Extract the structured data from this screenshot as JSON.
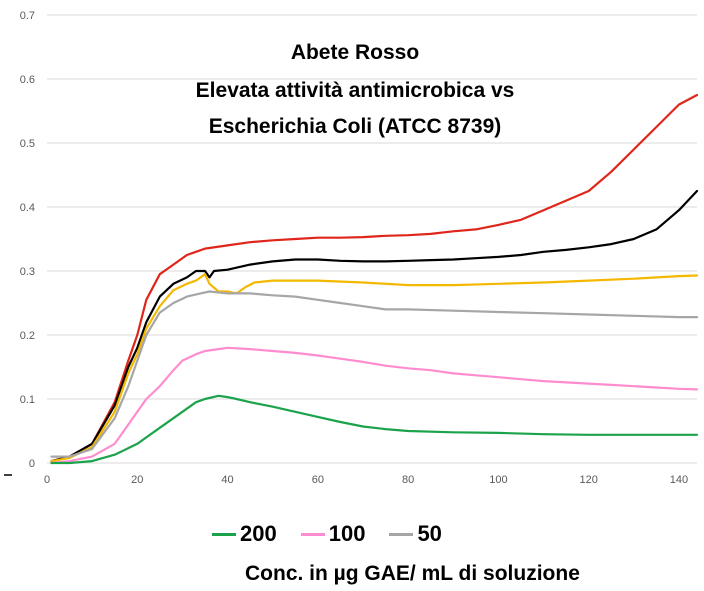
{
  "chart_data": {
    "type": "line",
    "title_lines": [
      "Abete Rosso",
      "Elevata attività antimicrobica vs",
      "Escherichia Coli (ATCC 8739)"
    ],
    "xlabel": "",
    "ylabel": "",
    "xlim": [
      0,
      144
    ],
    "ylim": [
      0,
      0.7
    ],
    "xticks": [
      "0",
      "20",
      "40",
      "60",
      "80",
      "100",
      "120",
      "140"
    ],
    "yticks": [
      "0",
      "0.1",
      "0.2",
      "0.3",
      "0.4",
      "0.5",
      "0.6",
      "0.7"
    ],
    "grid": "horizontal",
    "legend_position": "bottom",
    "legend_caption": "Conc. in µg GAE/ mL di soluzione",
    "series": [
      {
        "name": "",
        "color": "#e0261b",
        "x": [
          1,
          5,
          10,
          15,
          18,
          20,
          22,
          25,
          28,
          31,
          33,
          35,
          40,
          45,
          50,
          55,
          60,
          65,
          70,
          75,
          80,
          85,
          90,
          95,
          100,
          105,
          110,
          115,
          120,
          125,
          130,
          135,
          140,
          144
        ],
        "y": [
          0.003,
          0.01,
          0.03,
          0.095,
          0.16,
          0.2,
          0.255,
          0.295,
          0.31,
          0.325,
          0.33,
          0.335,
          0.34,
          0.345,
          0.348,
          0.35,
          0.352,
          0.352,
          0.353,
          0.355,
          0.356,
          0.358,
          0.362,
          0.365,
          0.372,
          0.38,
          0.395,
          0.41,
          0.425,
          0.455,
          0.49,
          0.525,
          0.56,
          0.575
        ]
      },
      {
        "name": "",
        "color": "#000000",
        "x": [
          1,
          5,
          10,
          15,
          18,
          20,
          22,
          25,
          28,
          31,
          33,
          35,
          36,
          37,
          40,
          45,
          50,
          55,
          60,
          65,
          70,
          75,
          80,
          85,
          90,
          95,
          100,
          105,
          110,
          115,
          120,
          125,
          130,
          135,
          140,
          144
        ],
        "y": [
          0.003,
          0.01,
          0.03,
          0.09,
          0.15,
          0.18,
          0.22,
          0.26,
          0.28,
          0.29,
          0.3,
          0.3,
          0.29,
          0.3,
          0.302,
          0.31,
          0.315,
          0.318,
          0.318,
          0.316,
          0.315,
          0.315,
          0.316,
          0.317,
          0.318,
          0.32,
          0.322,
          0.325,
          0.33,
          0.333,
          0.337,
          0.342,
          0.35,
          0.365,
          0.395,
          0.425
        ]
      },
      {
        "name": "",
        "color": "#f5b800",
        "x": [
          1,
          5,
          10,
          15,
          18,
          20,
          22,
          25,
          28,
          31,
          33,
          35,
          36,
          38,
          40,
          42,
          44,
          46,
          50,
          55,
          60,
          70,
          80,
          90,
          100,
          110,
          120,
          130,
          140,
          144
        ],
        "y": [
          0.003,
          0.008,
          0.025,
          0.08,
          0.14,
          0.17,
          0.21,
          0.245,
          0.27,
          0.28,
          0.285,
          0.295,
          0.28,
          0.268,
          0.268,
          0.265,
          0.275,
          0.282,
          0.285,
          0.285,
          0.285,
          0.282,
          0.278,
          0.278,
          0.28,
          0.282,
          0.285,
          0.288,
          0.292,
          0.293
        ]
      },
      {
        "name": "50",
        "color": "#a6a6a6",
        "x": [
          1,
          5,
          10,
          15,
          18,
          20,
          22,
          25,
          28,
          31,
          34,
          36,
          40,
          45,
          50,
          55,
          60,
          65,
          70,
          75,
          80,
          90,
          100,
          110,
          120,
          130,
          140,
          144
        ],
        "y": [
          0.01,
          0.01,
          0.022,
          0.07,
          0.12,
          0.16,
          0.2,
          0.235,
          0.25,
          0.26,
          0.265,
          0.268,
          0.265,
          0.265,
          0.262,
          0.26,
          0.255,
          0.25,
          0.245,
          0.24,
          0.24,
          0.238,
          0.236,
          0.234,
          0.232,
          0.23,
          0.228,
          0.228
        ]
      },
      {
        "name": "100",
        "color": "#ff8ccf",
        "x": [
          1,
          5,
          10,
          15,
          18,
          20,
          22,
          25,
          28,
          30,
          33,
          35,
          38,
          40,
          45,
          50,
          55,
          60,
          65,
          70,
          75,
          80,
          85,
          90,
          95,
          100,
          105,
          110,
          115,
          120,
          125,
          130,
          135,
          140,
          144
        ],
        "y": [
          0.0,
          0.003,
          0.01,
          0.03,
          0.06,
          0.08,
          0.1,
          0.12,
          0.145,
          0.16,
          0.17,
          0.175,
          0.178,
          0.18,
          0.178,
          0.175,
          0.172,
          0.168,
          0.163,
          0.158,
          0.152,
          0.148,
          0.145,
          0.14,
          0.137,
          0.134,
          0.131,
          0.128,
          0.126,
          0.124,
          0.122,
          0.12,
          0.118,
          0.116,
          0.115
        ]
      },
      {
        "name": "200",
        "color": "#1ba34b",
        "x": [
          1,
          5,
          10,
          15,
          20,
          22,
          25,
          28,
          30,
          33,
          35,
          38,
          40,
          42,
          45,
          50,
          55,
          60,
          65,
          70,
          75,
          80,
          90,
          100,
          110,
          120,
          130,
          140,
          144
        ],
        "y": [
          0.0,
          0.0,
          0.003,
          0.013,
          0.03,
          0.04,
          0.055,
          0.07,
          0.08,
          0.095,
          0.1,
          0.105,
          0.103,
          0.1,
          0.095,
          0.088,
          0.08,
          0.072,
          0.064,
          0.057,
          0.053,
          0.05,
          0.048,
          0.047,
          0.045,
          0.044,
          0.044,
          0.044,
          0.044
        ]
      }
    ]
  }
}
